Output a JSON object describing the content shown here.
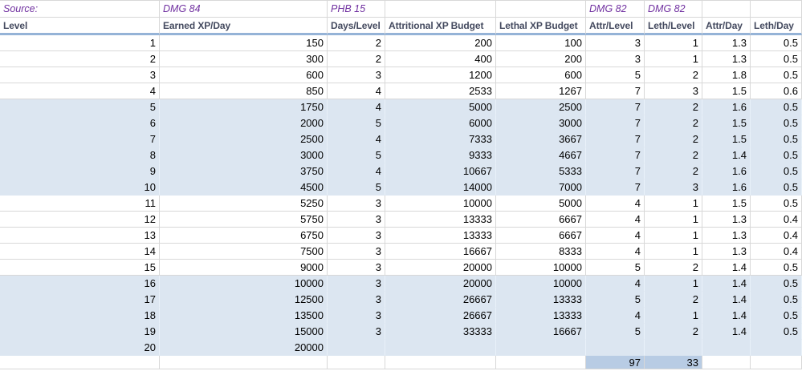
{
  "source_row": [
    "Source:",
    "DMG 84",
    "PHB 15",
    "",
    "",
    "DMG 82",
    "DMG 82",
    "",
    ""
  ],
  "headers": [
    "Level",
    "Earned XP/Day",
    "Days/Level",
    "Attritional XP Budget",
    "Lethal XP Budget",
    "Attr/Level",
    "Leth/Level",
    "Attr/Day",
    "Leth/Day"
  ],
  "rows": [
    {
      "shaded": false,
      "cells": [
        "1",
        "150",
        "2",
        "200",
        "100",
        "3",
        "1",
        "1.3",
        "0.5"
      ]
    },
    {
      "shaded": false,
      "cells": [
        "2",
        "300",
        "2",
        "400",
        "200",
        "3",
        "1",
        "1.3",
        "0.5"
      ]
    },
    {
      "shaded": false,
      "cells": [
        "3",
        "600",
        "3",
        "1200",
        "600",
        "5",
        "2",
        "1.8",
        "0.5"
      ]
    },
    {
      "shaded": false,
      "cells": [
        "4",
        "850",
        "4",
        "2533",
        "1267",
        "7",
        "3",
        "1.5",
        "0.6"
      ]
    },
    {
      "shaded": true,
      "cells": [
        "5",
        "1750",
        "4",
        "5000",
        "2500",
        "7",
        "2",
        "1.6",
        "0.5"
      ]
    },
    {
      "shaded": true,
      "cells": [
        "6",
        "2000",
        "5",
        "6000",
        "3000",
        "7",
        "2",
        "1.5",
        "0.5"
      ]
    },
    {
      "shaded": true,
      "cells": [
        "7",
        "2500",
        "4",
        "7333",
        "3667",
        "7",
        "2",
        "1.5",
        "0.5"
      ]
    },
    {
      "shaded": true,
      "cells": [
        "8",
        "3000",
        "5",
        "9333",
        "4667",
        "7",
        "2",
        "1.4",
        "0.5"
      ]
    },
    {
      "shaded": true,
      "cells": [
        "9",
        "3750",
        "4",
        "10667",
        "5333",
        "7",
        "2",
        "1.6",
        "0.5"
      ]
    },
    {
      "shaded": true,
      "cells": [
        "10",
        "4500",
        "5",
        "14000",
        "7000",
        "7",
        "3",
        "1.6",
        "0.5"
      ]
    },
    {
      "shaded": false,
      "cells": [
        "11",
        "5250",
        "3",
        "10000",
        "5000",
        "4",
        "1",
        "1.5",
        "0.5"
      ]
    },
    {
      "shaded": false,
      "cells": [
        "12",
        "5750",
        "3",
        "13333",
        "6667",
        "4",
        "1",
        "1.3",
        "0.4"
      ]
    },
    {
      "shaded": false,
      "cells": [
        "13",
        "6750",
        "3",
        "13333",
        "6667",
        "4",
        "1",
        "1.3",
        "0.4"
      ]
    },
    {
      "shaded": false,
      "cells": [
        "14",
        "7500",
        "3",
        "16667",
        "8333",
        "4",
        "1",
        "1.3",
        "0.4"
      ]
    },
    {
      "shaded": false,
      "cells": [
        "15",
        "9000",
        "3",
        "20000",
        "10000",
        "5",
        "2",
        "1.4",
        "0.5"
      ]
    },
    {
      "shaded": true,
      "cells": [
        "16",
        "10000",
        "3",
        "20000",
        "10000",
        "4",
        "1",
        "1.4",
        "0.5"
      ]
    },
    {
      "shaded": true,
      "cells": [
        "17",
        "12500",
        "3",
        "26667",
        "13333",
        "5",
        "2",
        "1.4",
        "0.5"
      ]
    },
    {
      "shaded": true,
      "cells": [
        "18",
        "13500",
        "3",
        "26667",
        "13333",
        "4",
        "1",
        "1.4",
        "0.5"
      ]
    },
    {
      "shaded": true,
      "cells": [
        "19",
        "15000",
        "3",
        "33333",
        "16667",
        "5",
        "2",
        "1.4",
        "0.5"
      ]
    },
    {
      "shaded": true,
      "cells": [
        "20",
        "20000",
        "",
        "",
        "",
        "",
        "",
        "",
        ""
      ]
    }
  ],
  "total_row": {
    "cells": [
      "",
      "",
      "",
      "",
      "",
      "97",
      "33",
      "",
      ""
    ],
    "highlight_indices": [
      5,
      6
    ]
  },
  "colors": {
    "band_fill": "#dce6f1",
    "band_grid": "#e9f1f9",
    "total_highlight_fill": "#b8cce4",
    "source_text": "#7030a0",
    "header_text": "#444a5f",
    "header_border": "#95b3d7",
    "gridline": "#d8d8d8"
  }
}
